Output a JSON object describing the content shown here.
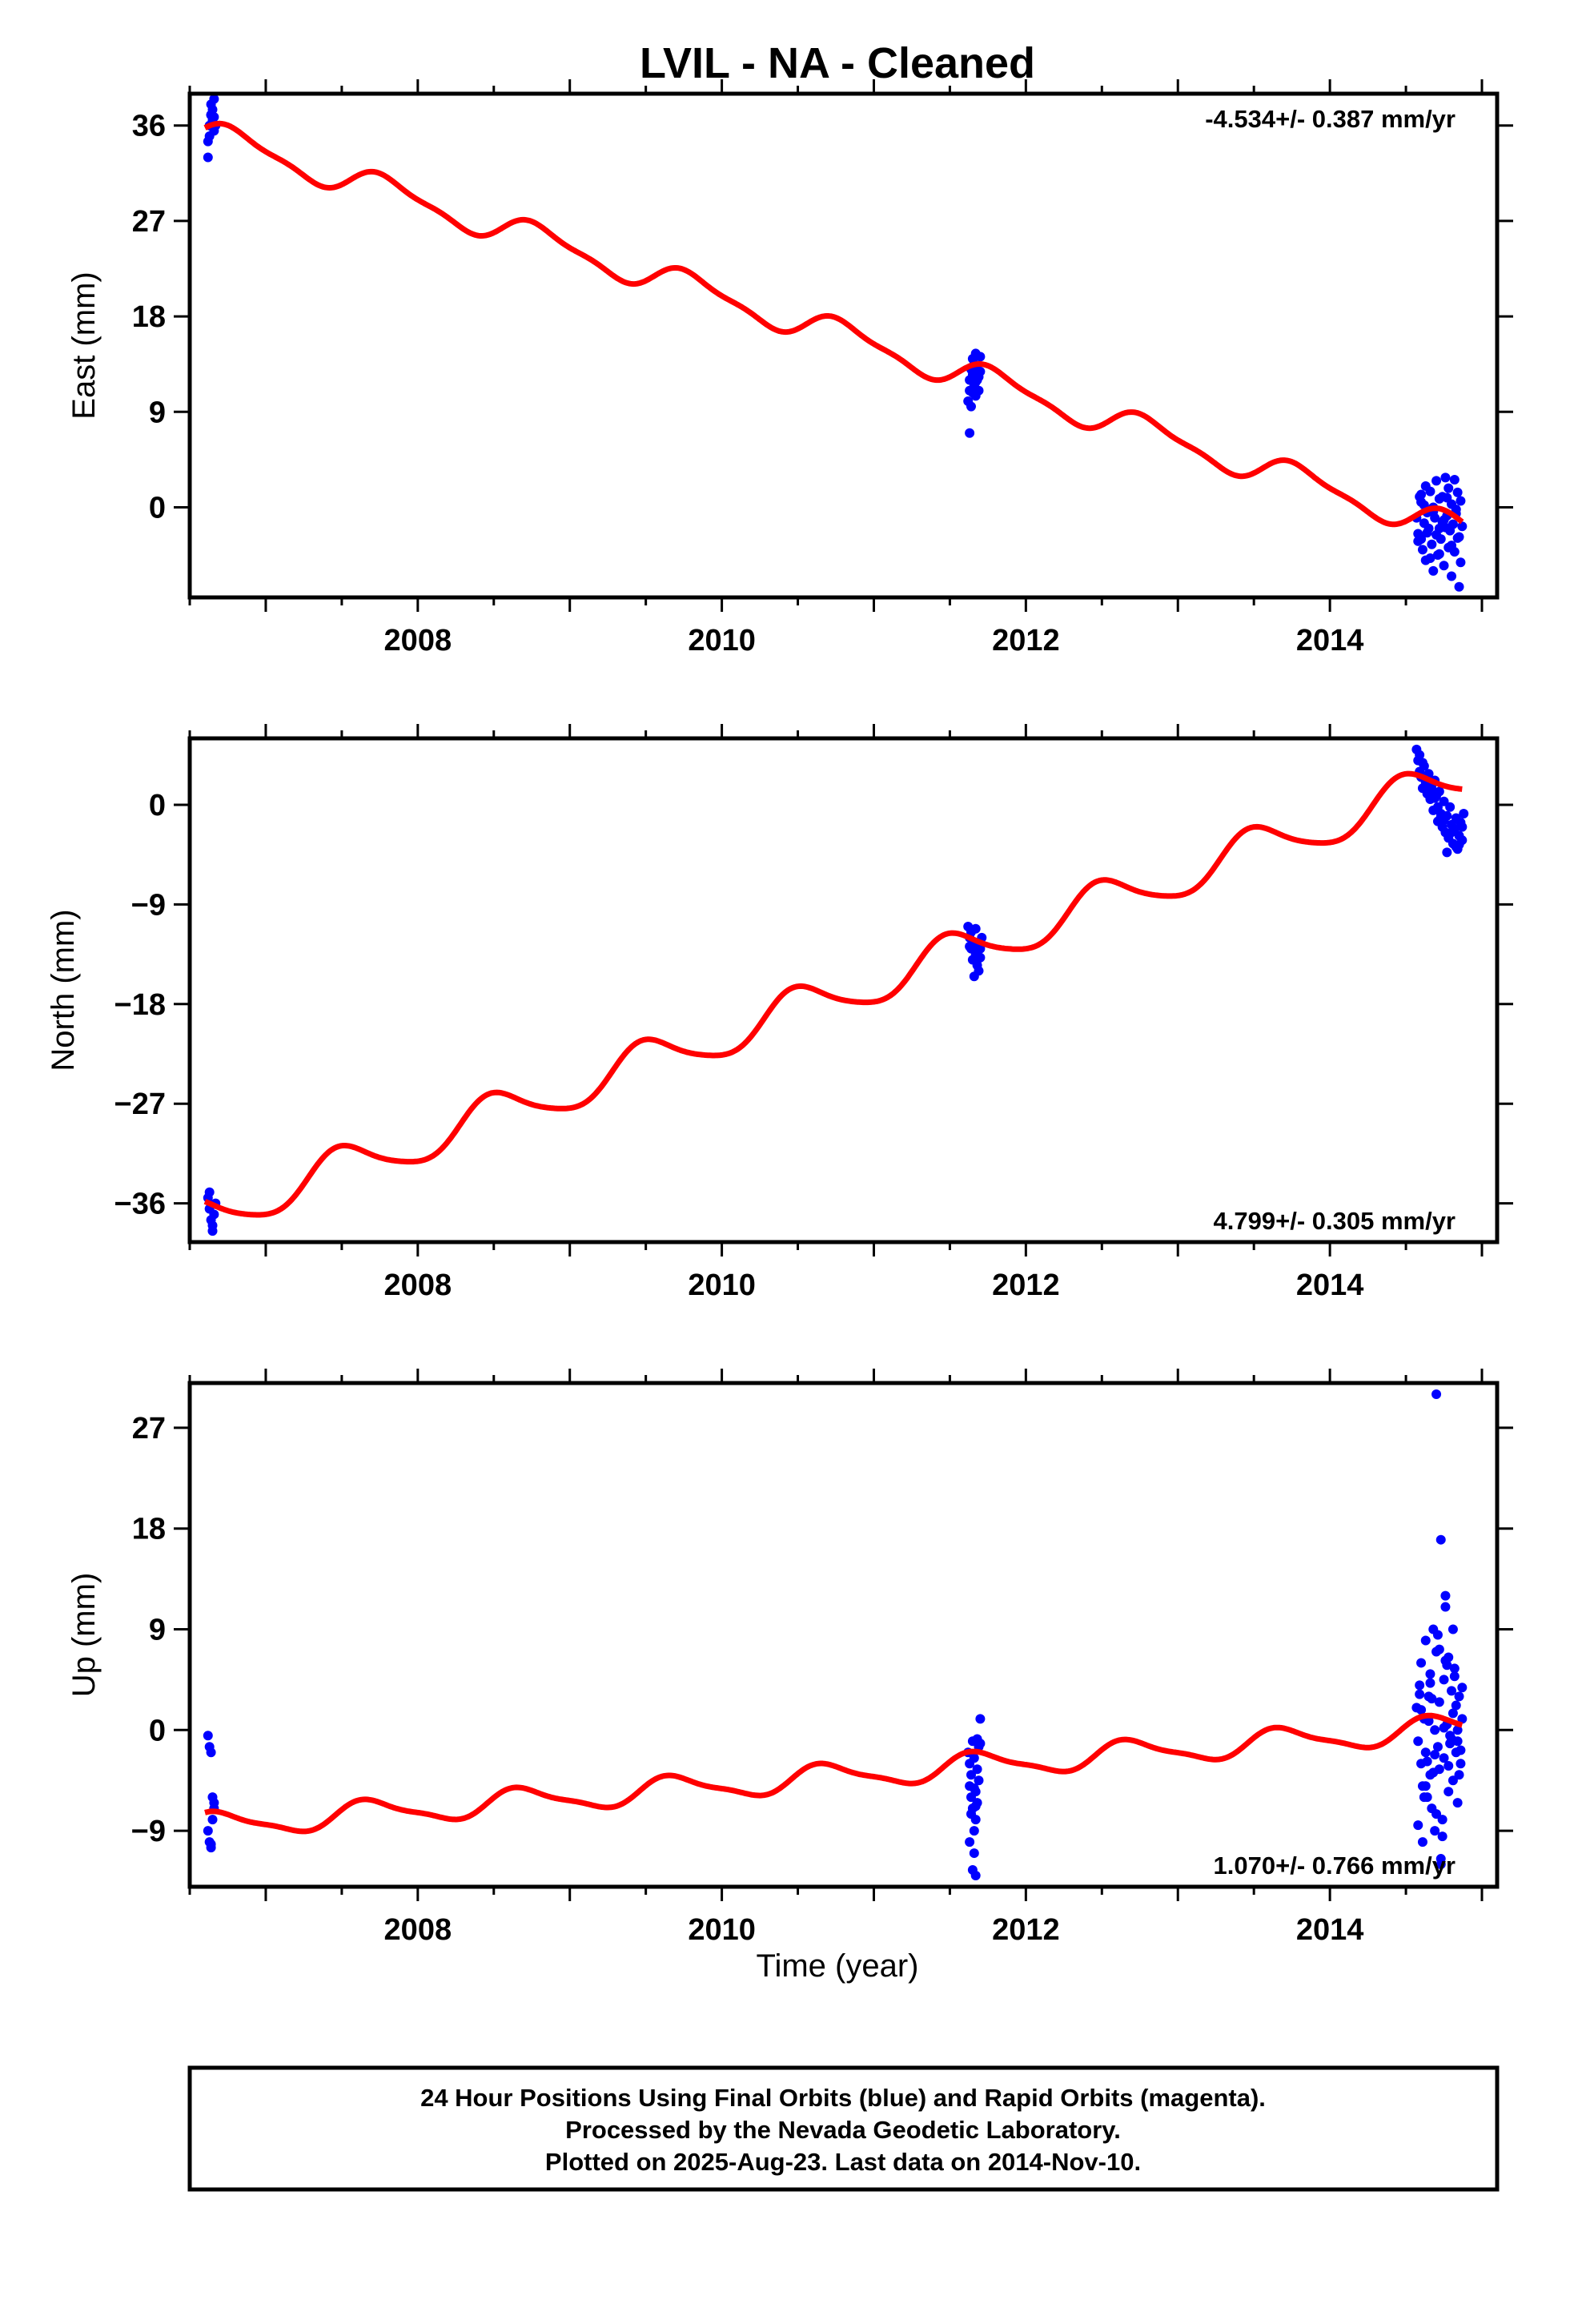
{
  "title": "LVIL  - NA - Cleaned",
  "xlabel": "Time (year)",
  "footer": {
    "line1": "24 Hour Positions Using Final Orbits (blue) and Rapid Orbits (magenta).",
    "line2": "Processed by the Nevada Geodetic Laboratory.",
    "line3": "Plotted on 2025-Aug-23. Last data on 2014-Nov-10."
  },
  "colors": {
    "data": "#0000ff",
    "model": "#ff0000",
    "axis": "#000000"
  },
  "chart_data": [
    {
      "type": "scatter",
      "ylabel": "East (mm)",
      "rate": "-4.534+/- 0.387 mm/yr",
      "xlim": [
        2006.5,
        2015.1
      ],
      "ylim": [
        -8.5,
        39
      ],
      "yticks": [
        0,
        9,
        18,
        27,
        36
      ],
      "xticks": [
        2008,
        2010,
        2012,
        2014
      ],
      "model": {
        "slope": -4.534,
        "intercept_year": 2006.6,
        "intercept": 35.2,
        "amp_annual": 1.3,
        "amp_semi": 0.4,
        "phase": 0.3
      },
      "series": [
        {
          "x": [
            2006.62,
            2006.63,
            2006.63,
            2006.64,
            2006.64,
            2006.65,
            2006.65,
            2006.66,
            2006.66,
            2006.67,
            2006.62,
            2006.64,
            2006.66
          ],
          "y": [
            33,
            35,
            36,
            37,
            38,
            36.5,
            37.5,
            38.5,
            35.5,
            36,
            34.5,
            37,
            36.8
          ]
        },
        {
          "x": [
            2011.62,
            2011.63,
            2011.63,
            2011.64,
            2011.64,
            2011.65,
            2011.65,
            2011.66,
            2011.66,
            2011.67,
            2011.67,
            2011.68,
            2011.68,
            2011.69,
            2011.7,
            2011.7,
            2011.63,
            2011.65,
            2011.67,
            2011.69
          ],
          "y": [
            10,
            11,
            12,
            13,
            9.5,
            12.5,
            14,
            11.5,
            13.5,
            10.5,
            14.5,
            12,
            13,
            11,
            14.2,
            12.8,
            7,
            10.8,
            11.8,
            12.3
          ]
        },
        {
          "x": [
            2014.57,
            2014.58,
            2014.59,
            2014.6,
            2014.6,
            2014.61,
            2014.62,
            2014.63,
            2014.63,
            2014.64,
            2014.65,
            2014.66,
            2014.67,
            2014.68,
            2014.68,
            2014.69,
            2014.7,
            2014.71,
            2014.72,
            2014.72,
            2014.73,
            2014.74,
            2014.75,
            2014.75,
            2014.76,
            2014.77,
            2014.78,
            2014.78,
            2014.79,
            2014.8,
            2014.8,
            2014.81,
            2014.82,
            2014.82,
            2014.83,
            2014.84,
            2014.85,
            2014.85,
            2014.86,
            2014.87,
            2014.58,
            2014.62,
            2014.66,
            2014.7,
            2014.74,
            2014.77,
            2014.8,
            2014.83,
            2014.86,
            2014.6,
            2014.64,
            2014.68,
            2014.72,
            2014.76,
            2014.84
          ],
          "y": [
            -1,
            -2.5,
            1,
            -3,
            0.5,
            -4,
            -1.5,
            2,
            -5,
            -0.5,
            -2,
            1.5,
            -3.5,
            0,
            -6,
            -1,
            2.5,
            -4.5,
            -2,
            0.8,
            -3,
            1,
            -5.5,
            -1.2,
            2.8,
            -0.8,
            -3.8,
            1.8,
            -2.2,
            0.3,
            -6.5,
            -1.6,
            2.6,
            -4.2,
            -0.2,
            1.4,
            -2.8,
            -7.5,
            0.6,
            -1.8,
            -3.2,
            0.2,
            -4.8,
            -2.6,
            -1.4,
            0.9,
            -3.6,
            -0.6,
            -5.2,
            1.2,
            -2.4,
            -0.4,
            -4.4,
            -1.9,
            -2.9
          ]
        }
      ]
    },
    {
      "type": "scatter",
      "ylabel": "North (mm)",
      "rate": "4.799+/- 0.305 mm/yr",
      "xlim": [
        2006.5,
        2015.1
      ],
      "ylim": [
        -39.5,
        6
      ],
      "yticks": [
        -36,
        -27,
        -18,
        -9,
        0
      ],
      "xticks": [
        2008,
        2010,
        2012,
        2014
      ],
      "model": {
        "slope": 4.799,
        "intercept_year": 2006.6,
        "intercept": -37.2,
        "amp_annual": 1.9,
        "amp_semi": 0.3,
        "phase": 2.2
      },
      "series": [
        {
          "x": [
            2006.62,
            2006.63,
            2006.64,
            2006.65,
            2006.66,
            2006.67,
            2006.63,
            2006.65
          ],
          "y": [
            -35.5,
            -36.5,
            -37.5,
            -38,
            -37,
            -36,
            -35,
            -38.5
          ]
        },
        {
          "x": [
            2011.62,
            2011.63,
            2011.64,
            2011.65,
            2011.66,
            2011.67,
            2011.68,
            2011.69,
            2011.7,
            2011.71,
            2011.64,
            2011.66,
            2011.68,
            2011.7,
            2011.63,
            2011.67
          ],
          "y": [
            -11,
            -12,
            -13,
            -14,
            -12.5,
            -13.5,
            -14.5,
            -15,
            -13,
            -12,
            -11.5,
            -15.5,
            -14,
            -13.8,
            -12.8,
            -11.2
          ]
        },
        {
          "x": [
            2014.57,
            2014.58,
            2014.59,
            2014.6,
            2014.61,
            2014.62,
            2014.63,
            2014.64,
            2014.65,
            2014.66,
            2014.67,
            2014.68,
            2014.69,
            2014.7,
            2014.71,
            2014.72,
            2014.73,
            2014.74,
            2014.75,
            2014.76,
            2014.77,
            2014.78,
            2014.79,
            2014.8,
            2014.81,
            2014.82,
            2014.83,
            2014.84,
            2014.85,
            2014.86,
            2014.87,
            2014.88,
            2014.59,
            2014.63,
            2014.67,
            2014.71,
            2014.75,
            2014.79,
            2014.83,
            2014.87,
            2014.61,
            2014.65,
            2014.69,
            2014.73,
            2014.77,
            2014.81,
            2014.85
          ],
          "y": [
            5,
            4,
            3,
            2.5,
            1.5,
            3.5,
            2,
            1,
            2.8,
            0.5,
            1.8,
            -0.5,
            2.2,
            0.8,
            -1.5,
            1.2,
            -0.8,
            -2,
            0.3,
            -2.5,
            -1,
            -3,
            -0.2,
            -1.8,
            -3.5,
            -2.2,
            -1.2,
            -4,
            -2.8,
            -1.6,
            -3.2,
            -0.8,
            4.5,
            2.6,
            1.4,
            -0.2,
            -1.4,
            -2.6,
            -3.8,
            -2,
            3.8,
            1.6,
            0.6,
            -1.1,
            -4.3,
            -2.4,
            -3.6
          ]
        }
      ]
    },
    {
      "type": "scatter",
      "ylabel": "Up (mm)",
      "rate": "1.070+/- 0.766 mm/yr",
      "xlim": [
        2006.5,
        2015.1
      ],
      "ylim": [
        -14,
        31
      ],
      "yticks": [
        -9,
        0,
        9,
        18,
        27
      ],
      "xticks": [
        2008,
        2010,
        2012,
        2014
      ],
      "model": {
        "slope": 1.07,
        "intercept_year": 2006.6,
        "intercept": -8.6,
        "amp_annual": 1.1,
        "amp_semi": 0.3,
        "phase": 1.0
      },
      "series": [
        {
          "x": [
            2006.62,
            2006.63,
            2006.64,
            2006.65,
            2006.66,
            2006.62,
            2006.63,
            2006.64,
            2006.65,
            2006.66,
            2006.64
          ],
          "y": [
            -0.5,
            -1.5,
            -2,
            -6,
            -7,
            -9,
            -10,
            -10.5,
            -8,
            -6.5,
            -10.2
          ]
        },
        {
          "x": [
            2011.62,
            2011.63,
            2011.63,
            2011.64,
            2011.64,
            2011.65,
            2011.65,
            2011.66,
            2011.66,
            2011.67,
            2011.67,
            2011.68,
            2011.68,
            2011.69,
            2011.7,
            2011.63,
            2011.65,
            2011.67,
            2011.69,
            2011.64,
            2011.66,
            2011.68,
            2011.7,
            2011.66,
            2011.67
          ],
          "y": [
            -2,
            -3,
            -5,
            -6,
            -4,
            -7,
            -1,
            -9,
            -2.5,
            -5.5,
            -8,
            -3.5,
            -6.5,
            -1.5,
            1,
            -10,
            -12.5,
            -13,
            -4.5,
            -7.5,
            -11,
            -0.8,
            -1.2,
            -5.2,
            -6.8
          ]
        },
        {
          "x": [
            2014.57,
            2014.58,
            2014.59,
            2014.6,
            2014.6,
            2014.61,
            2014.62,
            2014.63,
            2014.63,
            2014.64,
            2014.65,
            2014.66,
            2014.66,
            2014.67,
            2014.68,
            2014.69,
            2014.69,
            2014.7,
            2014.71,
            2014.72,
            2014.72,
            2014.73,
            2014.74,
            2014.75,
            2014.75,
            2014.76,
            2014.77,
            2014.78,
            2014.78,
            2014.79,
            2014.8,
            2014.81,
            2014.81,
            2014.82,
            2014.83,
            2014.84,
            2014.84,
            2014.85,
            2014.86,
            2014.87,
            2014.58,
            2014.61,
            2014.64,
            2014.67,
            2014.7,
            2014.73,
            2014.76,
            2014.79,
            2014.82,
            2014.85,
            2014.59,
            2014.62,
            2014.65,
            2014.68,
            2014.71,
            2014.74,
            2014.77,
            2014.8,
            2014.83,
            2014.86,
            2014.6,
            2014.63,
            2014.66,
            2014.69,
            2014.72,
            2014.75,
            2014.78,
            2014.81,
            2014.84,
            2014.87,
            2014.7,
            2014.73,
            2014.76
          ],
          "y": [
            2,
            -1,
            4,
            -3,
            6,
            -5,
            1,
            -2,
            8,
            -6,
            3,
            -4,
            5,
            -7,
            9,
            0,
            -9,
            7,
            -1.5,
            -3.5,
            2.5,
            17,
            -8,
            4.5,
            -2.5,
            11,
            0.5,
            -5.5,
            6.5,
            -0.5,
            3.5,
            -4.5,
            1.5,
            5.5,
            -2,
            -6.5,
            0,
            3,
            -3,
            1,
            -8.5,
            -10,
            -2.8,
            2.8,
            -7.5,
            -11.5,
            6.2,
            -1.2,
            4.8,
            -4,
            3.2,
            -6,
            0.8,
            -3.8,
            8.5,
            -9.5,
            5.8,
            -0.8,
            2.2,
            -1.8,
            1.8,
            -5,
            4.2,
            -2.2,
            7.2,
            0.2,
            -3.2,
            9,
            -1,
            3.8,
            30,
            -12,
            12
          ]
        }
      ]
    }
  ]
}
